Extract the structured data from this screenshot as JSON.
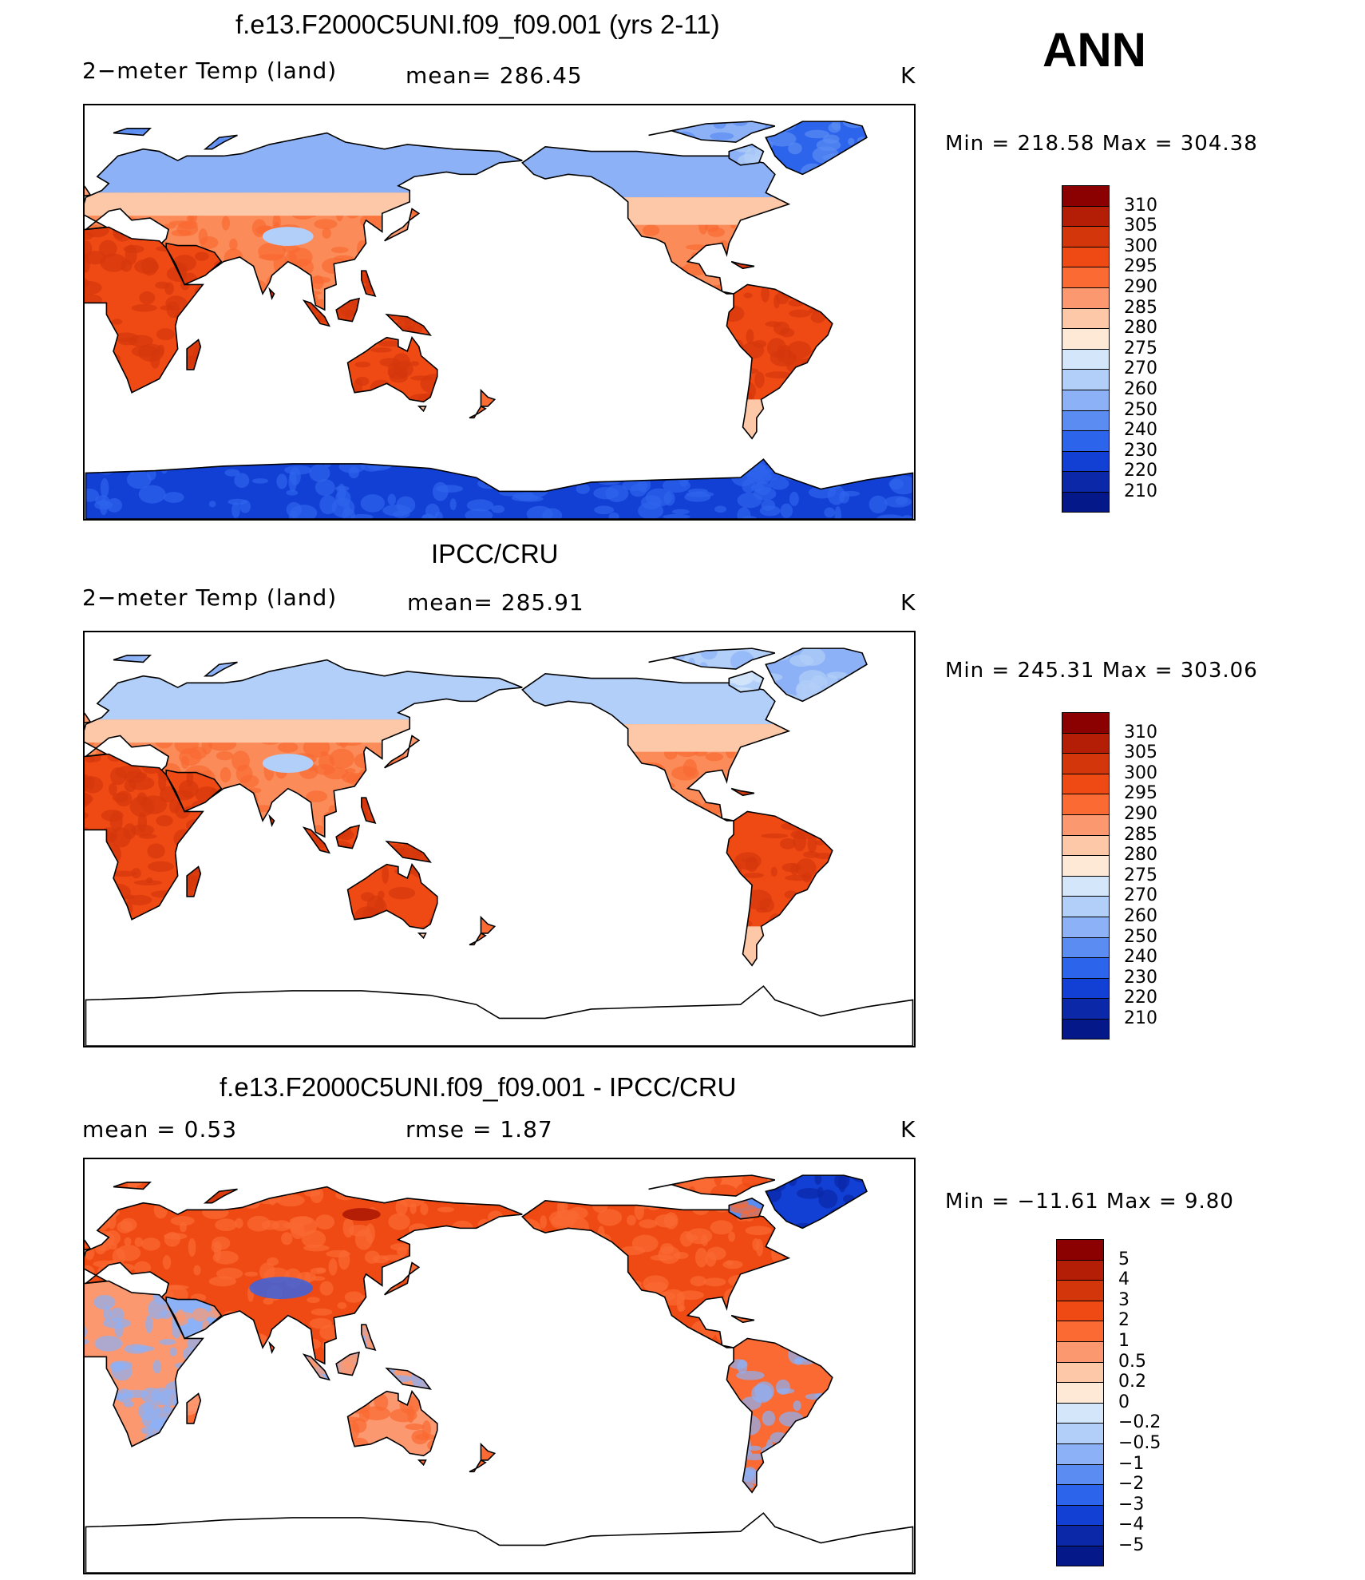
{
  "season_label": "ANN",
  "panels": [
    {
      "title": "f.e13.F2000C5UNI.f09_f09.001 (yrs 2-11)",
      "left_label": "2−meter Temp (land)",
      "center_label": "mean= 286.45",
      "units": "K",
      "minmax": "Min = 218.58 Max = 304.38",
      "map": {
        "style": "model",
        "antarctica_shaded": true
      }
    },
    {
      "title": "IPCC/CRU",
      "left_label": "2−meter Temp (land)",
      "center_label": "mean= 285.91",
      "units": "K",
      "minmax": "Min = 245.31 Max = 303.06",
      "map": {
        "style": "obs",
        "antarctica_shaded": false
      }
    },
    {
      "title": "f.e13.F2000C5UNI.f09_f09.001 - IPCC/CRU",
      "left_label": "mean =     0.53",
      "center_label": "rmse =     1.87",
      "units": "K",
      "minmax": "Min = −11.61 Max =     9.80",
      "map": {
        "style": "diff",
        "antarctica_shaded": false
      }
    }
  ],
  "colorbars": {
    "absolute": {
      "levels": [
        "310",
        "305",
        "300",
        "295",
        "290",
        "285",
        "280",
        "275",
        "270",
        "260",
        "250",
        "240",
        "230",
        "220",
        "210"
      ],
      "colors": [
        "#8b0000",
        "#b41e06",
        "#d4360c",
        "#f04a14",
        "#fa6a32",
        "#fc9870",
        "#fdc8a8",
        "#fde9d6",
        "#d4e6fa",
        "#b2cffa",
        "#8cb1f6",
        "#5a8cf2",
        "#2d64ec",
        "#123fd4",
        "#0a28a8",
        "#05188a"
      ]
    },
    "difference": {
      "levels": [
        "5",
        "4",
        "3",
        "2",
        "1",
        "0.5",
        "0.2",
        "0",
        "−0.2",
        "−0.5",
        "−1",
        "−2",
        "−3",
        "−4",
        "−5"
      ],
      "colors": [
        "#8b0000",
        "#b41e06",
        "#d4360c",
        "#f04a14",
        "#fa6a32",
        "#fc9870",
        "#fdc8a8",
        "#fde9d6",
        "#d4e6fa",
        "#b2cffa",
        "#8cb1f6",
        "#5a8cf2",
        "#2d64ec",
        "#123fd4",
        "#0a28a8",
        "#05188a"
      ]
    }
  }
}
